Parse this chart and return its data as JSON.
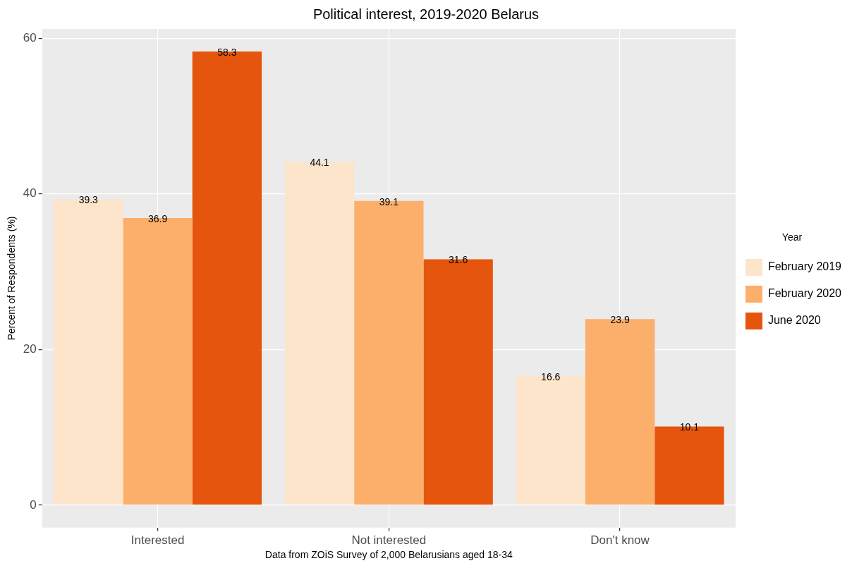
{
  "chart_data": {
    "type": "bar",
    "title": "Political interest, 2019-2020 Belarus",
    "xlabel": "Data from ZOiS Survey of 2,000 Belarusians aged 18-34",
    "ylabel": "Percent of Respondents (%)",
    "legend_title": "Year",
    "categories": [
      "Interested",
      "Not interested",
      "Don't know"
    ],
    "series": [
      {
        "name": "February 2019",
        "color": "#fde5cc",
        "values": [
          39.3,
          44.1,
          16.6
        ]
      },
      {
        "name": "February 2020",
        "color": "#fcae6b",
        "values": [
          36.9,
          39.1,
          23.9
        ]
      },
      {
        "name": "June 2020",
        "color": "#e6550d",
        "values": [
          58.3,
          31.6,
          10.1
        ]
      }
    ],
    "ylim": [
      -2.9,
      61.2
    ],
    "yticks": [
      0,
      20,
      40,
      60
    ],
    "grid": true,
    "legend": "right",
    "data_labels": true
  }
}
